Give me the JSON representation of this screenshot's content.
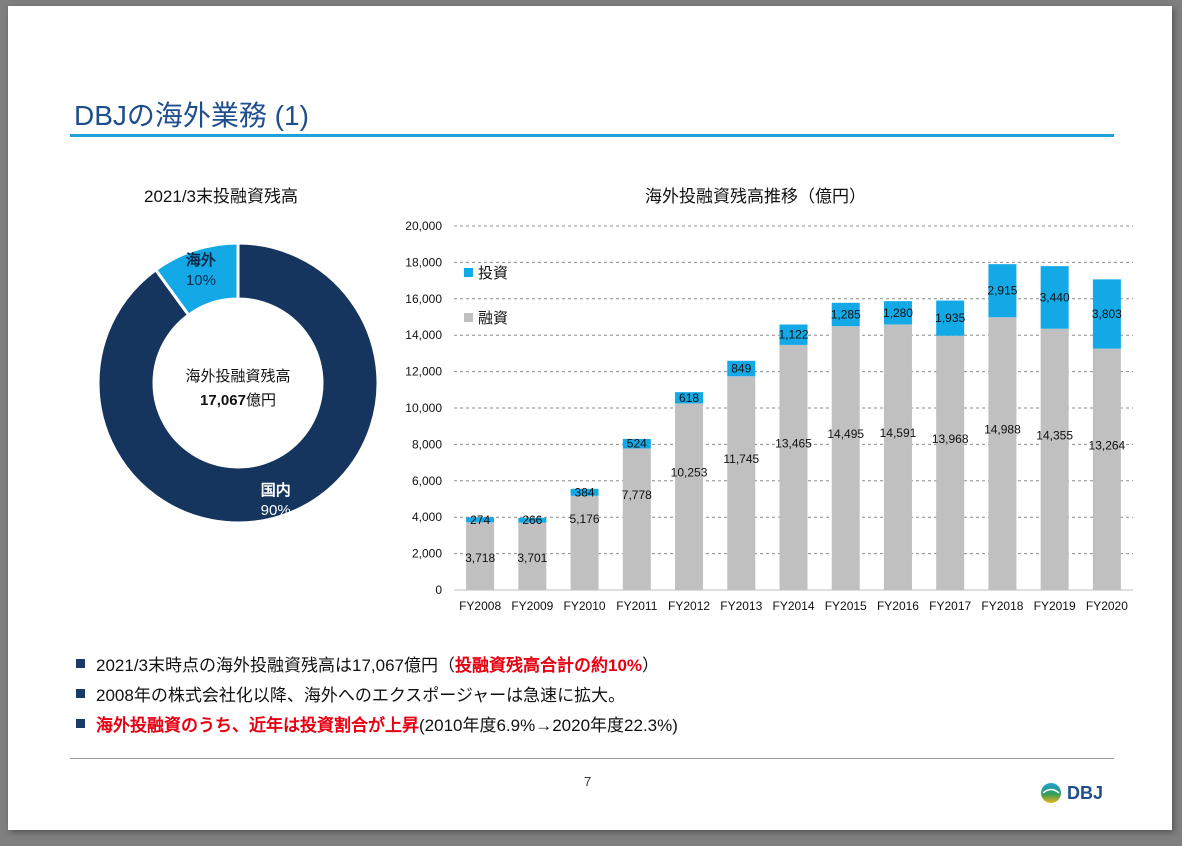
{
  "slide": {
    "title": "DBJの海外業務 (1)",
    "page_number": "7",
    "logo_text": "DBJ"
  },
  "colors": {
    "navy": "#15355e",
    "cyan": "#12a9e6",
    "gray": "#c0c0c0",
    "rule": "#1fa0d8",
    "red": "#e60012"
  },
  "bullets": [
    {
      "text": "2021/3末時点の海外投融資残高は17,067億円（",
      "red": "投融資残高合計の約10%",
      "suffix": "）"
    },
    {
      "text": "2008年の株式会社化以降、海外へのエクスポージャーは急速に拡大。",
      "red": "",
      "suffix": ""
    },
    {
      "text": "",
      "red": "海外投融資のうち、近年は投資割合が上昇",
      "suffix": "(2010年度6.9%→2020年度22.3%)"
    }
  ],
  "chart_data": [
    {
      "type": "pie",
      "title": "2021/3末投融資残高",
      "donut": true,
      "center_label": [
        "海外投融資残高",
        "17,067",
        "億円"
      ],
      "slices": [
        {
          "name": "国内",
          "label": "90%",
          "value": 90,
          "color": "#15355e"
        },
        {
          "name": "海外",
          "label": "10%",
          "value": 10,
          "color": "#12a9e6"
        }
      ]
    },
    {
      "type": "bar",
      "stacked": true,
      "title": "海外投融資残高推移（億円）",
      "categories": [
        "FY2008",
        "FY2009",
        "FY2010",
        "FY2011",
        "FY2012",
        "FY2013",
        "FY2014",
        "FY2015",
        "FY2016",
        "FY2017",
        "FY2018",
        "FY2019",
        "FY2020"
      ],
      "series": [
        {
          "name": "融資",
          "color": "#c0c0c0",
          "values": [
            3718,
            3701,
            5176,
            7778,
            10253,
            11745,
            13465,
            14495,
            14591,
            13968,
            14988,
            14355,
            13264
          ],
          "labels": [
            "3,718",
            "3,701",
            "5,176",
            "7,778",
            "10,253",
            "11,745",
            "13,465",
            "14,495",
            "14,591",
            "13,968",
            "14,988",
            "14,355",
            "13,264"
          ]
        },
        {
          "name": "投資",
          "color": "#12a9e6",
          "values": [
            274,
            266,
            384,
            524,
            618,
            849,
            1122,
            1285,
            1280,
            1935,
            2915,
            3440,
            3803
          ],
          "labels": [
            "274",
            "266",
            "384",
            "524",
            "618",
            "849",
            "1,122",
            "1,285",
            "1,280",
            "1,935",
            "2,915",
            "3,440",
            "3,803"
          ]
        }
      ],
      "ylim": [
        0,
        20000
      ],
      "yticks": [
        0,
        2000,
        4000,
        6000,
        8000,
        10000,
        12000,
        14000,
        16000,
        18000,
        20000
      ],
      "ytick_labels": [
        "0",
        "2,000",
        "4,000",
        "6,000",
        "8,000",
        "10,000",
        "12,000",
        "14,000",
        "16,000",
        "18,000",
        "20,000"
      ],
      "grid": true,
      "legend_position": "top-left"
    }
  ]
}
